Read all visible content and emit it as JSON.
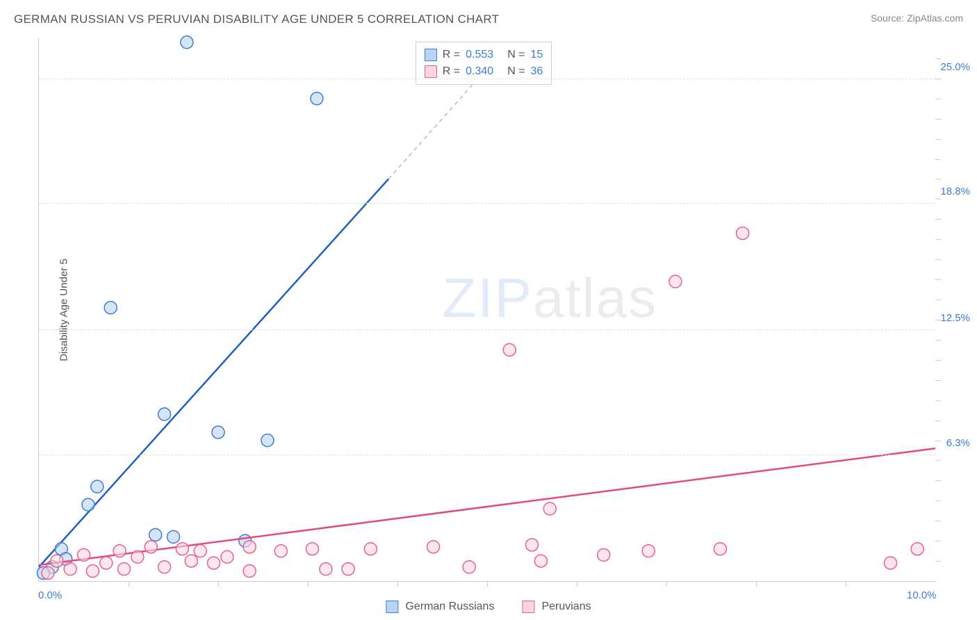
{
  "title": "GERMAN RUSSIAN VS PERUVIAN DISABILITY AGE UNDER 5 CORRELATION CHART",
  "source": "Source: ZipAtlas.com",
  "ylabel": "Disability Age Under 5",
  "watermark_zip": "ZIP",
  "watermark_atlas": "atlas",
  "corr_legend": {
    "rows": [
      {
        "swatch_class": "blue-sw",
        "r_label": "R =",
        "r_value": "0.553",
        "n_label": "N =",
        "n_value": "15"
      },
      {
        "swatch_class": "pink-sw",
        "r_label": "R =",
        "r_value": "0.340",
        "n_label": "N =",
        "n_value": "36"
      }
    ]
  },
  "cat_legend": {
    "items": [
      {
        "swatch_class": "blue-sw",
        "label": "German Russians"
      },
      {
        "swatch_class": "pink-sw",
        "label": "Peruvians"
      }
    ]
  },
  "chart": {
    "type": "scatter",
    "xlim": [
      0,
      10.0
    ],
    "ylim": [
      0,
      27.0
    ],
    "background_color": "#ffffff",
    "grid_color": "#e0e0e0",
    "axis_color": "#cccccc",
    "yticks": [
      {
        "value": 6.3,
        "label": "6.3%"
      },
      {
        "value": 12.5,
        "label": "12.5%"
      },
      {
        "value": 18.8,
        "label": "18.8%"
      },
      {
        "value": 25.0,
        "label": "25.0%"
      }
    ],
    "y_minor_tick_step": 1.0,
    "xticks_labels": [
      {
        "value": 0.0,
        "label": "0.0%"
      },
      {
        "value": 10.0,
        "label": "10.0%"
      }
    ],
    "x_minor_tick_step": 1.0,
    "label_color": "#3b7dd8",
    "label_fontsize": 15,
    "title_fontsize": 17,
    "title_color": "#555555",
    "marker_radius": 9,
    "marker_stroke_width": 1.5,
    "line_width": 2.5,
    "series": [
      {
        "name": "German Russians",
        "fill": "#b9d4f0",
        "stroke": "#3b7dd8",
        "fill_opacity": 0.6,
        "points": [
          {
            "x": 1.65,
            "y": 26.8
          },
          {
            "x": 3.1,
            "y": 24.0
          },
          {
            "x": 0.8,
            "y": 13.6
          },
          {
            "x": 1.4,
            "y": 8.3
          },
          {
            "x": 2.0,
            "y": 7.4
          },
          {
            "x": 2.55,
            "y": 7.0
          },
          {
            "x": 0.65,
            "y": 4.7
          },
          {
            "x": 0.55,
            "y": 3.8
          },
          {
            "x": 1.3,
            "y": 2.3
          },
          {
            "x": 1.5,
            "y": 2.2
          },
          {
            "x": 2.3,
            "y": 2.0
          },
          {
            "x": 0.25,
            "y": 1.6
          },
          {
            "x": 0.3,
            "y": 1.1
          },
          {
            "x": 0.15,
            "y": 0.7
          },
          {
            "x": 0.05,
            "y": 0.4
          }
        ],
        "trendline": {
          "x1": 0.0,
          "y1": 0.7,
          "x2": 3.9,
          "y2": 20.0,
          "color": "#1f5fbf",
          "dash_from_x": 3.9,
          "dash_to_x": 4.9,
          "dash_to_y": 25.0
        }
      },
      {
        "name": "Peruvians",
        "fill": "#fbd5e0",
        "stroke": "#e86090",
        "fill_opacity": 0.6,
        "points": [
          {
            "x": 7.85,
            "y": 17.3
          },
          {
            "x": 7.1,
            "y": 14.9
          },
          {
            "x": 5.25,
            "y": 11.5
          },
          {
            "x": 5.7,
            "y": 3.6
          },
          {
            "x": 9.8,
            "y": 1.6
          },
          {
            "x": 9.5,
            "y": 0.9
          },
          {
            "x": 7.6,
            "y": 1.6
          },
          {
            "x": 6.8,
            "y": 1.5
          },
          {
            "x": 6.3,
            "y": 1.3
          },
          {
            "x": 5.6,
            "y": 1.0
          },
          {
            "x": 5.5,
            "y": 1.8
          },
          {
            "x": 4.8,
            "y": 0.7
          },
          {
            "x": 4.4,
            "y": 1.7
          },
          {
            "x": 3.7,
            "y": 1.6
          },
          {
            "x": 3.45,
            "y": 0.6
          },
          {
            "x": 3.2,
            "y": 0.6
          },
          {
            "x": 3.05,
            "y": 1.6
          },
          {
            "x": 2.7,
            "y": 1.5
          },
          {
            "x": 2.35,
            "y": 0.5
          },
          {
            "x": 2.35,
            "y": 1.7
          },
          {
            "x": 2.1,
            "y": 1.2
          },
          {
            "x": 1.95,
            "y": 0.9
          },
          {
            "x": 1.8,
            "y": 1.5
          },
          {
            "x": 1.7,
            "y": 1.0
          },
          {
            "x": 1.6,
            "y": 1.6
          },
          {
            "x": 1.4,
            "y": 0.7
          },
          {
            "x": 1.25,
            "y": 1.7
          },
          {
            "x": 1.1,
            "y": 1.2
          },
          {
            "x": 0.95,
            "y": 0.6
          },
          {
            "x": 0.9,
            "y": 1.5
          },
          {
            "x": 0.75,
            "y": 0.9
          },
          {
            "x": 0.6,
            "y": 0.5
          },
          {
            "x": 0.5,
            "y": 1.3
          },
          {
            "x": 0.35,
            "y": 0.6
          },
          {
            "x": 0.2,
            "y": 1.0
          },
          {
            "x": 0.1,
            "y": 0.4
          }
        ],
        "trendline": {
          "x1": 0.0,
          "y1": 0.8,
          "x2": 10.0,
          "y2": 6.6,
          "color": "#e24a7a"
        }
      }
    ]
  }
}
